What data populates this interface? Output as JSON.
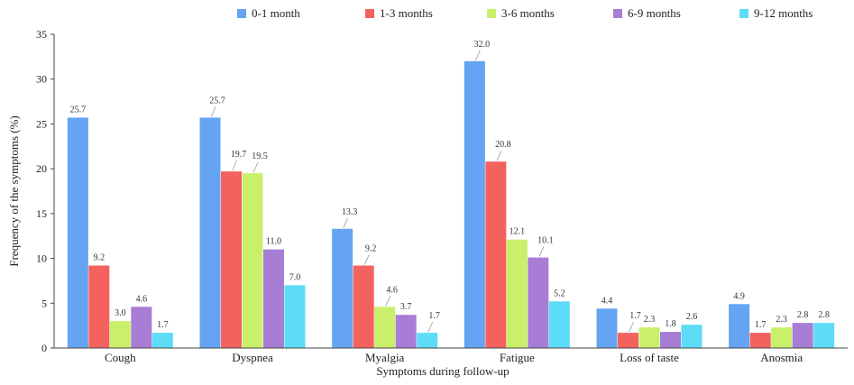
{
  "chart_data": {
    "type": "bar",
    "title": "",
    "xlabel": "Symptoms during follow-up",
    "ylabel": "Frequency of the symptoms (%)",
    "ylim": [
      0,
      35
    ],
    "yticks": [
      0,
      5,
      10,
      15,
      20,
      25,
      30,
      35
    ],
    "grid": false,
    "legend": "top",
    "categories": [
      "Cough",
      "Dyspnea",
      "Myalgia",
      "Fatigue",
      "Loss of taste",
      "Anosmia"
    ],
    "series": [
      {
        "name": "0-1 month",
        "color": "#64a4f2",
        "values": [
          25.7,
          25.7,
          13.3,
          32.0,
          4.4,
          4.9
        ],
        "labels": [
          "25.7",
          "25.7",
          "13.3",
          "32.0",
          "4.4",
          "4.9"
        ]
      },
      {
        "name": "1-3 months",
        "color": "#f4625e",
        "values": [
          9.2,
          19.7,
          9.2,
          20.8,
          1.7,
          1.7
        ],
        "labels": [
          "9.2",
          "19.7",
          "9.2",
          "20.8",
          "1.7",
          "1.7"
        ]
      },
      {
        "name": "3-6 months",
        "color": "#c9ef6b",
        "values": [
          3.0,
          19.5,
          4.6,
          12.1,
          2.3,
          2.3
        ],
        "labels": [
          "3.0",
          "19.5",
          "4.6",
          "12.1",
          "2.3",
          "2.3"
        ]
      },
      {
        "name": "6-9 months",
        "color": "#a77dd6",
        "values": [
          4.6,
          11.0,
          3.7,
          10.1,
          1.8,
          2.8
        ],
        "labels": [
          "4.6",
          "11.0",
          "3.7",
          "10.1",
          "1.8",
          "2.8"
        ]
      },
      {
        "name": "9-12 months",
        "color": "#5ddcf8",
        "values": [
          1.7,
          7.0,
          1.7,
          5.2,
          2.6,
          2.8
        ],
        "labels": [
          "1.7",
          "7.0",
          "1.7",
          "5.2",
          "2.6",
          "2.8"
        ]
      }
    ]
  }
}
